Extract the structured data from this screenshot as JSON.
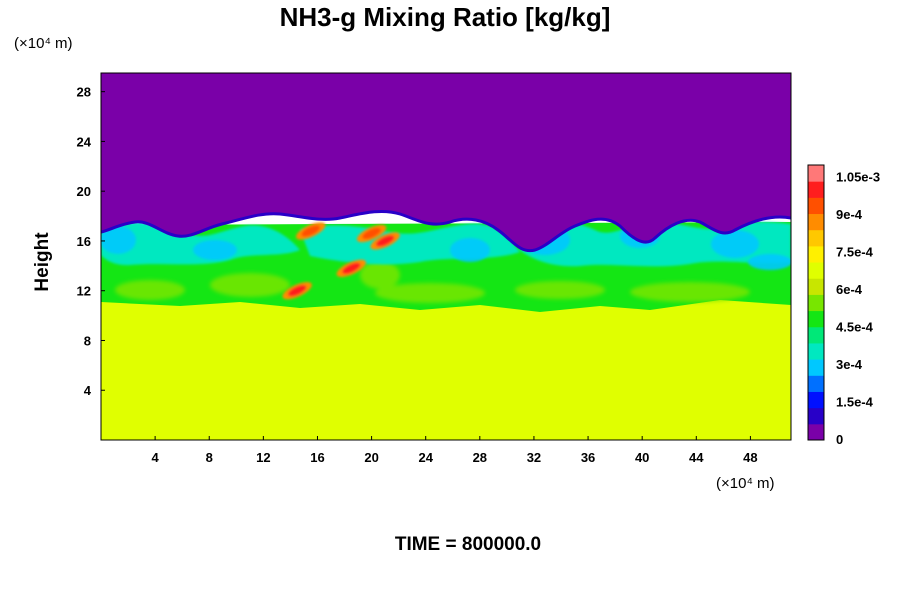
{
  "chart_data": {
    "type": "heatmap",
    "title": "NH3-g Mixing Ratio [kg/kg]",
    "ylabel": "Height",
    "x_unit_label": "(×10⁴ m)",
    "y_unit_label": "(×10⁴ m)",
    "time_label": "TIME = 800000.0",
    "xlim": [
      0,
      51
    ],
    "ylim": [
      0,
      29.5
    ],
    "x_ticks": [
      "4",
      "8",
      "12",
      "16",
      "20",
      "24",
      "28",
      "32",
      "36",
      "40",
      "44",
      "48"
    ],
    "x_tick_values": [
      4,
      8,
      12,
      16,
      20,
      24,
      28,
      32,
      36,
      40,
      44,
      48
    ],
    "y_ticks": [
      "4",
      "8",
      "12",
      "16",
      "20",
      "24",
      "28"
    ],
    "y_tick_values": [
      4,
      8,
      12,
      16,
      20,
      24,
      28
    ],
    "colorbar": {
      "range": [
        0,
        0.0011
      ],
      "labels": [
        "0",
        "1.5e-4",
        "3e-4",
        "4.5e-4",
        "6e-4",
        "7.5e-4",
        "9e-4",
        "1.05e-3"
      ],
      "label_values": [
        0,
        0.00015,
        0.0003,
        0.00045,
        0.0006,
        0.00075,
        0.0009,
        0.00105
      ],
      "colors": [
        "#7a00a8",
        "#2800c8",
        "#0010ff",
        "#0070ff",
        "#00c8ff",
        "#00e8c0",
        "#00e878",
        "#14e614",
        "#78e600",
        "#c8e600",
        "#e0ff00",
        "#fff000",
        "#ffc800",
        "#ff8c00",
        "#ff5000",
        "#ff1e1e",
        "#ff7878"
      ]
    },
    "regions": {
      "upper_layer": {
        "value": 0,
        "y_range": [
          17.5,
          29.5
        ]
      },
      "mixed_layer": {
        "value_range": [
          0.00025,
          0.0006
        ],
        "y_range": [
          11,
          17.5
        ]
      },
      "lower_layer": {
        "value": 0.00078,
        "y_range": [
          0,
          11
        ]
      },
      "peak_patches": [
        {
          "x": 14.5,
          "y": 12.0,
          "value": 0.001
        },
        {
          "x": 18.5,
          "y": 13.8,
          "value": 0.00098
        },
        {
          "x": 15.5,
          "y": 16.8,
          "value": 0.00095
        },
        {
          "x": 21.0,
          "y": 16.0,
          "value": 0.001
        },
        {
          "x": 20.0,
          "y": 16.6,
          "value": 0.00092
        }
      ]
    }
  }
}
